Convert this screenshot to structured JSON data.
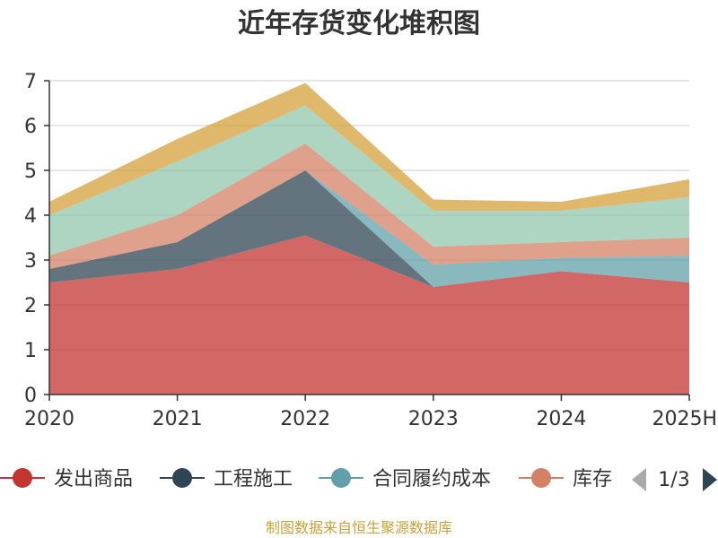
{
  "chart_data": {
    "type": "area",
    "stacked": true,
    "title": "近年存货变化堆积图",
    "ylabel": "",
    "categories": [
      "2020",
      "2021",
      "2022",
      "2023",
      "2024",
      "2025H"
    ],
    "ylim": [
      0,
      7
    ],
    "yticks": [
      0,
      1,
      2,
      3,
      4,
      5,
      6,
      7
    ],
    "grid": true,
    "series": [
      {
        "name": "发出商品",
        "color": "#c23531",
        "values": [
          2.5,
          2.8,
          3.55,
          2.4,
          2.75,
          2.5
        ]
      },
      {
        "name": "工程施工",
        "color": "#2f4554",
        "values": [
          0.3,
          0.6,
          1.45,
          0.0,
          0.0,
          0.0
        ]
      },
      {
        "name": "合同履约成本",
        "color": "#61a0a8",
        "values": [
          0.0,
          0.0,
          0.0,
          0.5,
          0.3,
          0.6
        ]
      },
      {
        "name": "库存",
        "color": "#d48265",
        "values": [
          0.3,
          0.6,
          0.6,
          0.4,
          0.35,
          0.4
        ]
      },
      {
        "name": "",
        "color": "#91c7ae",
        "values": [
          0.9,
          1.2,
          0.85,
          0.8,
          0.7,
          0.9
        ]
      },
      {
        "name": "",
        "color": "#d4a03a",
        "values": [
          0.3,
          0.5,
          0.5,
          0.25,
          0.2,
          0.4
        ]
      }
    ],
    "legend": {
      "placement": "bottom",
      "visible_items": [
        "发出商品",
        "工程施工",
        "合同履约成本",
        "库存"
      ],
      "page": "1/3"
    },
    "source_note": "制图数据来自恒生聚源数据库"
  }
}
